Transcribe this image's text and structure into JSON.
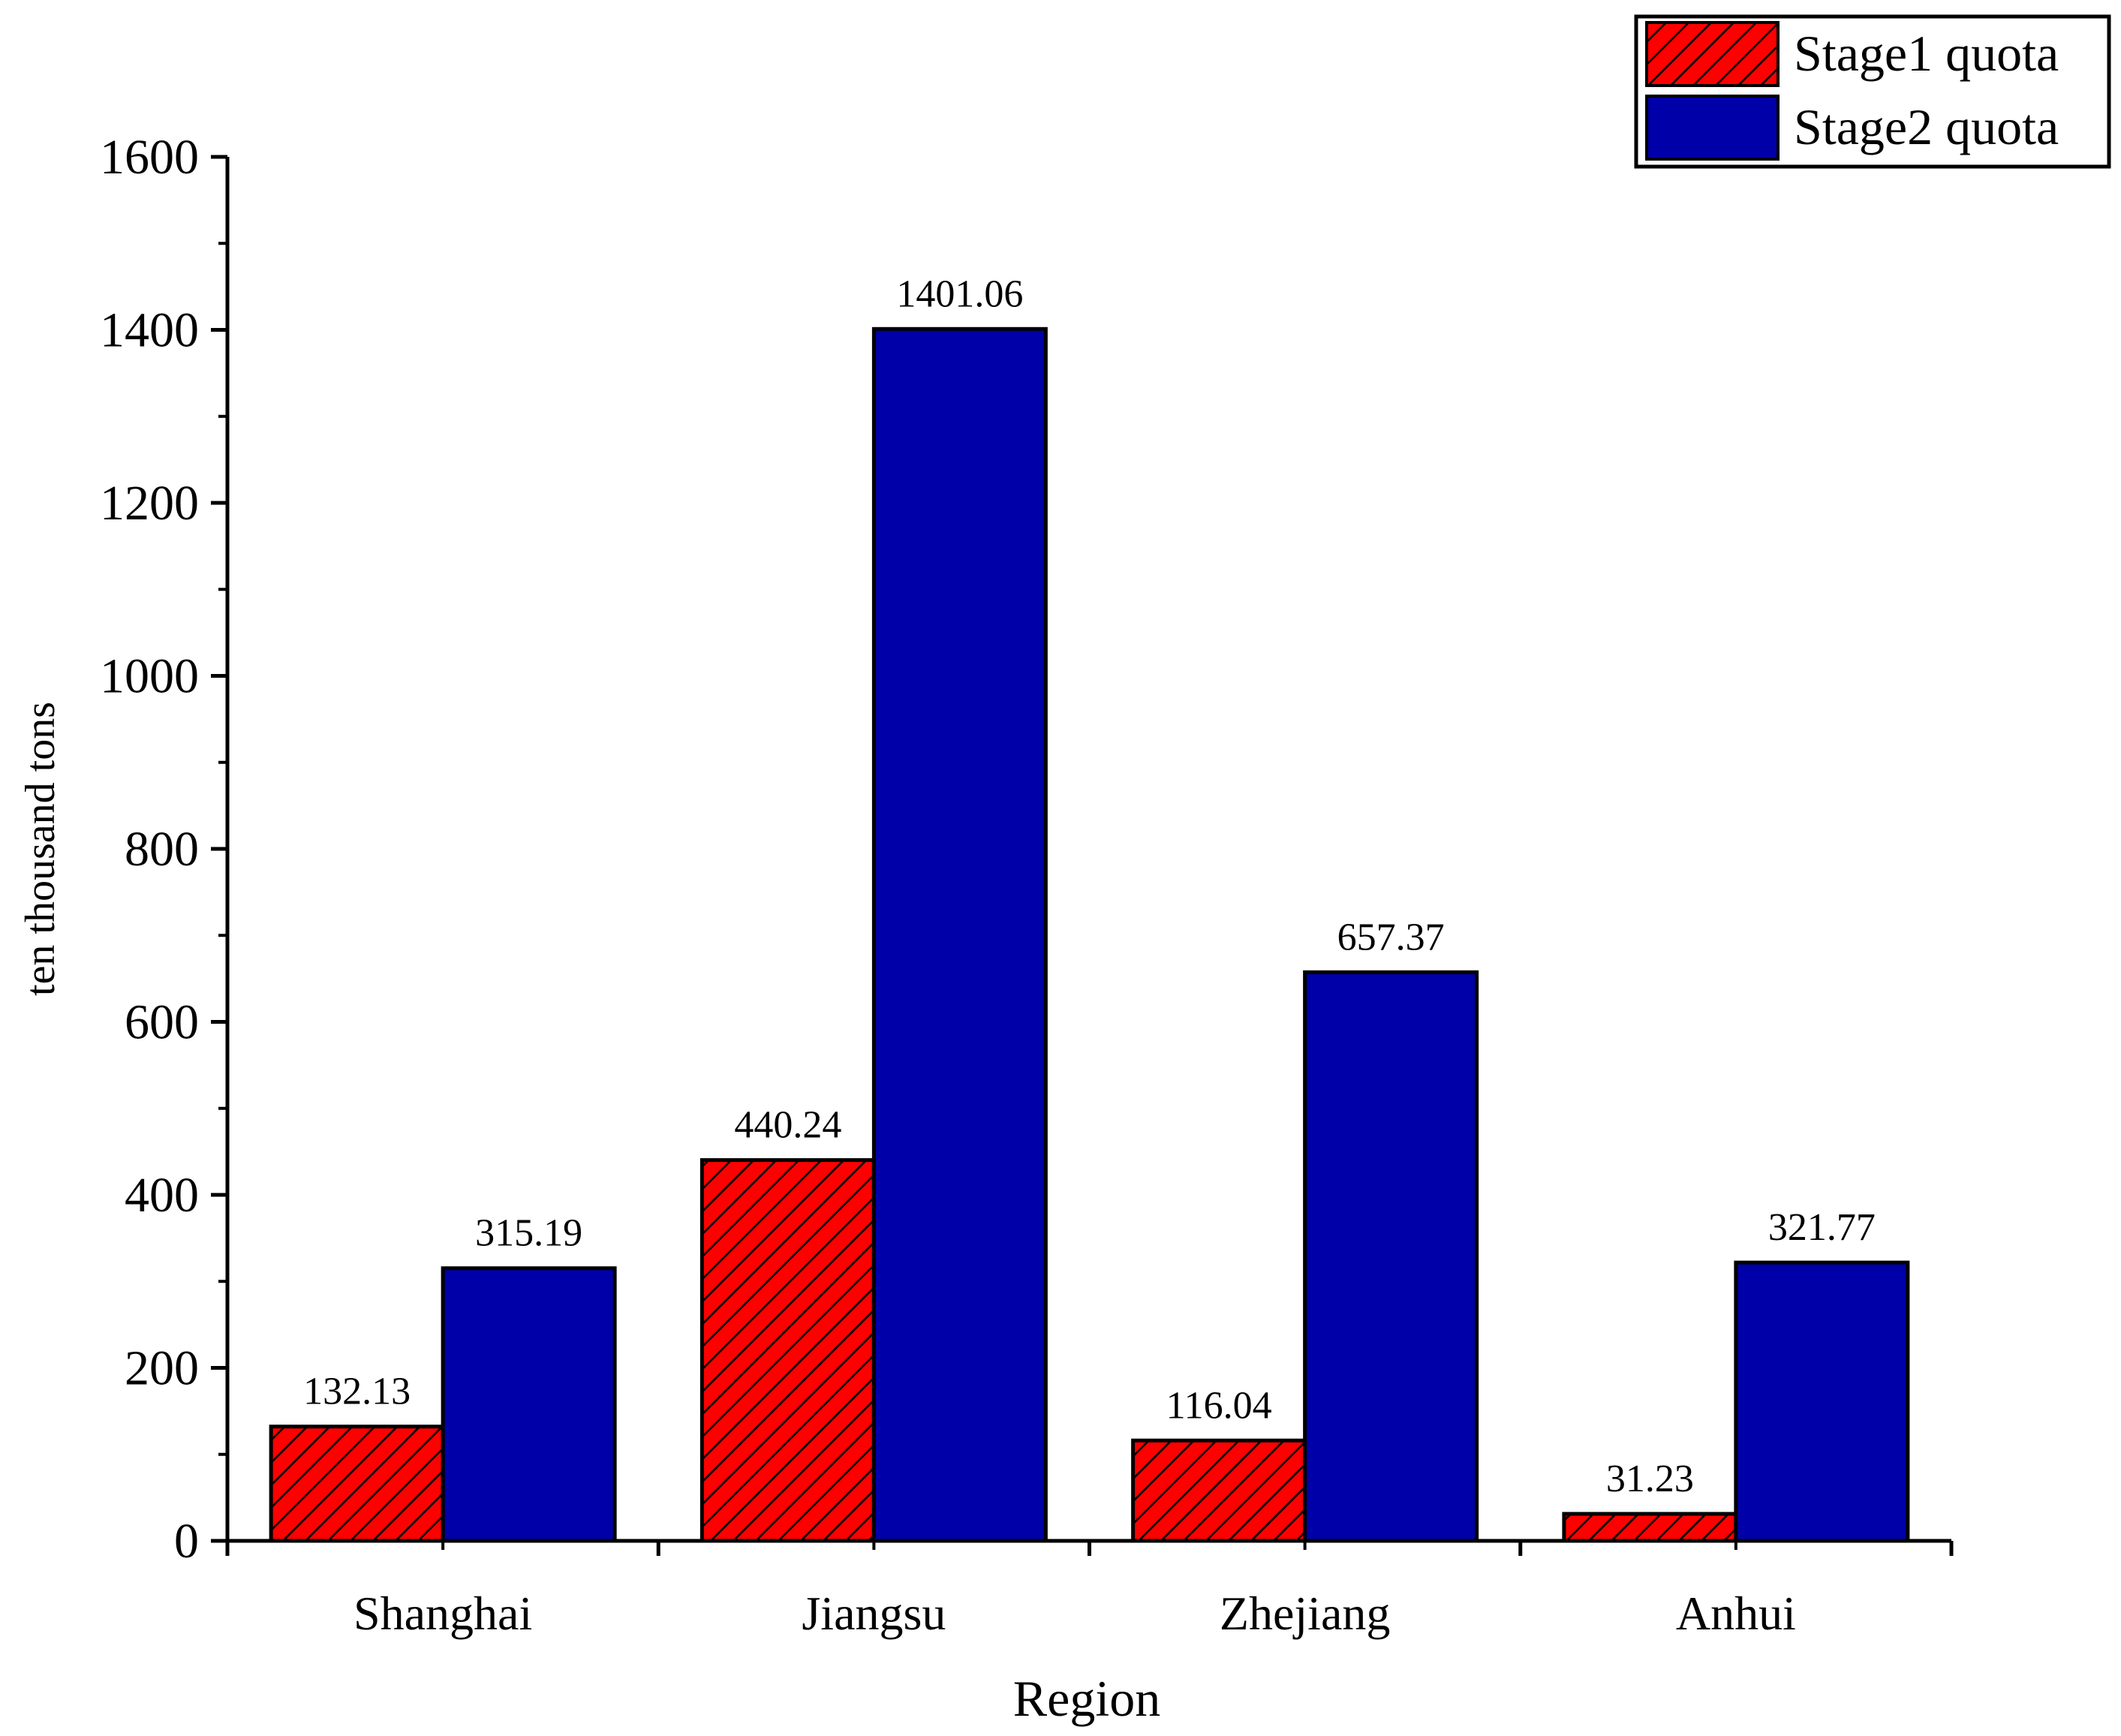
{
  "chart_data": {
    "type": "bar",
    "categories": [
      "Shanghai",
      "Jiangsu",
      "Zhejiang",
      "Anhui"
    ],
    "series": [
      {
        "name": "Stage1 quota",
        "values": [
          132.13,
          440.24,
          116.04,
          31.23
        ],
        "labels": [
          "132.13",
          "440.24",
          "116.04",
          "31.23"
        ],
        "color": "#ff0000",
        "pattern": "diagonal-hatch"
      },
      {
        "name": "Stage2 quota",
        "values": [
          315.19,
          1401.06,
          657.37,
          321.77
        ],
        "labels": [
          "315.19",
          "1401.06",
          "657.37",
          "321.77"
        ],
        "color": "#0000a8",
        "pattern": "solid"
      }
    ],
    "title": "",
    "xlabel": "Region",
    "ylabel": "ten thousand tons",
    "ylim": [
      0,
      1600
    ],
    "yticks": [
      0,
      200,
      400,
      600,
      800,
      1000,
      1200,
      1400,
      1600
    ],
    "ytick_labels": [
      "0",
      "200",
      "400",
      "600",
      "800",
      "1000",
      "1200",
      "1400",
      "1600"
    ],
    "grid": false,
    "legend": "top-right"
  }
}
